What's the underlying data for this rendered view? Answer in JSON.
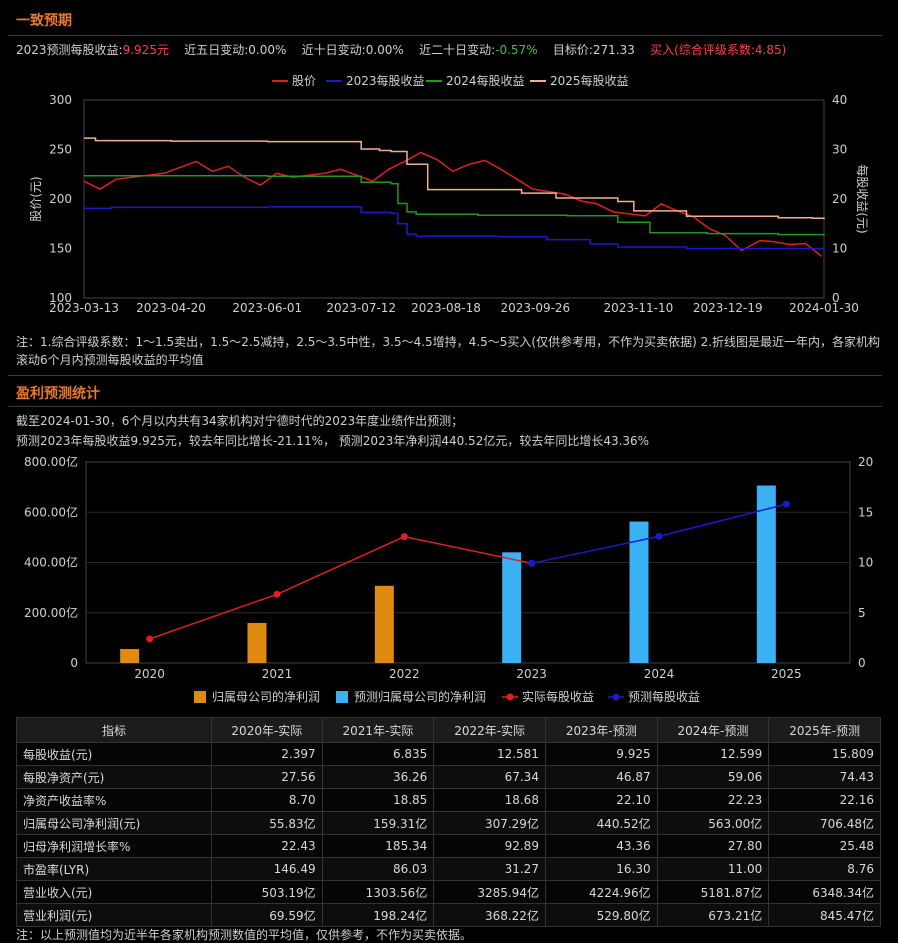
{
  "consensus": {
    "title": "一致预期",
    "eps_label": "2023预测每股收益:",
    "eps_value": "9.925元",
    "chg5": "近五日变动:0.00%",
    "chg10": "近十日变动:0.00%",
    "chg20_label": "近二十日变动:",
    "chg20_value": "-0.57%",
    "target": "目标价:271.33",
    "rating": "买入(综合评级系数:4.85)",
    "note": "注：1.综合评级系数：1～1.5卖出，1.5～2.5减持，2.5～3.5中性，3.5～4.5增持，4.5～5买入(仅供参考用，不作为买卖依据) 2.折线图是最近一年内，各家机构滚动6个月内预测每股收益的平均值"
  },
  "chart_data": [
    {
      "type": "line",
      "title": "",
      "ylabel": "股价(元)",
      "y2label": "每股收益(元)",
      "ylim": [
        100,
        300
      ],
      "y2lim": [
        0,
        40
      ],
      "yticks": [
        "300",
        "250",
        "200",
        "150",
        "100"
      ],
      "y2ticks": [
        "40",
        "30",
        "20",
        "10",
        "0"
      ],
      "xlim": [
        "2023-03-13",
        "2024-01-30"
      ],
      "xticks": [
        "2023-03-13",
        "2023-04-20",
        "2023-06-01",
        "2023-07-12",
        "2023-08-18",
        "2023-09-26",
        "2023-11-10",
        "2023-12-19",
        "2024-01-30"
      ],
      "legend": "top-center",
      "series": [
        {
          "name": "股价",
          "color": "#e02020",
          "axis": "left",
          "x": [
            "2023-03-13",
            "2023-03-20",
            "2023-03-27",
            "2023-04-03",
            "2023-04-10",
            "2023-04-17",
            "2023-04-24",
            "2023-05-01",
            "2023-05-08",
            "2023-05-15",
            "2023-05-22",
            "2023-05-29",
            "2023-06-05",
            "2023-06-12",
            "2023-06-19",
            "2023-06-26",
            "2023-07-03",
            "2023-07-10",
            "2023-07-17",
            "2023-07-24",
            "2023-07-31",
            "2023-08-07",
            "2023-08-14",
            "2023-08-21",
            "2023-08-28",
            "2023-09-04",
            "2023-09-11",
            "2023-09-18",
            "2023-09-25",
            "2023-10-09",
            "2023-10-16",
            "2023-10-23",
            "2023-10-30",
            "2023-11-06",
            "2023-11-13",
            "2023-11-20",
            "2023-11-27",
            "2023-12-04",
            "2023-12-11",
            "2023-12-18",
            "2023-12-25",
            "2024-01-02",
            "2024-01-08",
            "2024-01-15",
            "2024-01-22",
            "2024-01-29"
          ],
          "values": [
            218,
            210,
            220,
            222,
            224,
            226,
            232,
            238,
            228,
            233,
            222,
            214,
            226,
            222,
            224,
            226,
            230,
            224,
            218,
            230,
            238,
            247,
            240,
            228,
            235,
            239,
            230,
            220,
            210,
            205,
            198,
            195,
            187,
            185,
            183,
            195,
            188,
            182,
            170,
            163,
            148,
            158,
            157,
            154,
            155,
            142
          ]
        },
        {
          "name": "2023每股收益",
          "color": "#1a1acc",
          "axis": "right",
          "x": [
            "2023-03-13",
            "2023-03-25",
            "2023-04-20",
            "2023-06-01",
            "2023-07-12",
            "2023-07-25",
            "2023-07-28",
            "2023-08-01",
            "2023-08-05",
            "2023-09-10",
            "2023-10-01",
            "2023-10-20",
            "2023-11-01",
            "2023-12-01",
            "2024-01-10",
            "2024-01-30"
          ],
          "values": [
            18.1,
            18.3,
            18.3,
            18.4,
            17.3,
            17.1,
            15.0,
            12.9,
            12.5,
            12.4,
            11.8,
            10.9,
            10.3,
            10.0,
            10.0,
            9.9
          ]
        },
        {
          "name": "2024每股收益",
          "color": "#1f9a1f",
          "axis": "right",
          "x": [
            "2023-03-13",
            "2023-04-20",
            "2023-06-01",
            "2023-07-12",
            "2023-07-25",
            "2023-07-28",
            "2023-08-01",
            "2023-08-05",
            "2023-09-01",
            "2023-10-10",
            "2023-11-01",
            "2023-11-15",
            "2023-12-10",
            "2024-01-10",
            "2024-01-30"
          ],
          "values": [
            24.7,
            24.7,
            24.6,
            23.4,
            23.1,
            19.1,
            17.4,
            16.9,
            16.7,
            16.6,
            15.3,
            13.2,
            13.0,
            12.8,
            12.6
          ]
        },
        {
          "name": "2025每股收益",
          "color": "#f0b090",
          "axis": "right",
          "x": [
            "2023-03-13",
            "2023-03-18",
            "2023-04-20",
            "2023-06-01",
            "2023-07-12",
            "2023-07-20",
            "2023-07-25",
            "2023-08-01",
            "2023-08-10",
            "2023-09-20",
            "2023-10-05",
            "2023-11-01",
            "2023-11-08",
            "2023-12-01",
            "2024-01-10",
            "2024-01-25",
            "2024-01-30"
          ],
          "values": [
            32.3,
            31.8,
            31.7,
            31.6,
            30.1,
            29.8,
            29.6,
            27.0,
            21.9,
            21.2,
            20.2,
            19.5,
            17.6,
            16.5,
            16.2,
            16.1,
            15.9
          ]
        }
      ]
    },
    {
      "type": "bar",
      "title": "",
      "ylim": [
        0,
        800
      ],
      "y2lim": [
        0,
        20
      ],
      "yticks": [
        "800.00亿",
        "600.00亿",
        "400.00亿",
        "200.00亿",
        "0"
      ],
      "y2ticks": [
        "20",
        "15",
        "10",
        "5",
        "0"
      ],
      "categories": [
        "2020",
        "2021",
        "2022",
        "2023",
        "2024",
        "2025"
      ],
      "legend": "bottom-center",
      "series": [
        {
          "name": "归属母公司的净利润",
          "color": "#e08a10",
          "type": "bar",
          "values": [
            55.83,
            159.31,
            307.29,
            null,
            null,
            null
          ]
        },
        {
          "name": "预测归属母公司的净利润",
          "color": "#3ab0f5",
          "type": "bar",
          "values": [
            null,
            null,
            null,
            440.52,
            563.0,
            706.48
          ]
        },
        {
          "name": "实际每股收益",
          "color": "#e02020",
          "type": "line",
          "values": [
            2.397,
            6.835,
            12.581,
            9.925,
            null,
            null
          ]
        },
        {
          "name": "预测每股收益",
          "color": "#1a1acc",
          "type": "line",
          "values": [
            null,
            null,
            null,
            9.925,
            12.599,
            15.809
          ]
        }
      ]
    }
  ],
  "stats": {
    "title": "盈利预测统计",
    "line1": "截至2024-01-30，6个月以内共有34家机构对宁德时代的2023年度业绩作出预测；",
    "line2": "预测2023年每股收益9.925元，较去年同比增长-21.11%， 预测2023年净利润440.52亿元，较去年同比增长43.36%"
  },
  "table": {
    "headers": [
      "指标",
      "2020年-实际",
      "2021年-实际",
      "2022年-实际",
      "2023年-预测",
      "2024年-预测",
      "2025年-预测"
    ],
    "rows": [
      [
        "每股收益(元)",
        "2.397",
        "6.835",
        "12.581",
        "9.925",
        "12.599",
        "15.809"
      ],
      [
        "每股净资产(元)",
        "27.56",
        "36.26",
        "67.34",
        "46.87",
        "59.06",
        "74.43"
      ],
      [
        "净资产收益率%",
        "8.70",
        "18.85",
        "18.68",
        "22.10",
        "22.23",
        "22.16"
      ],
      [
        "归属母公司净利润(元)",
        "55.83亿",
        "159.31亿",
        "307.29亿",
        "440.52亿",
        "563.00亿",
        "706.48亿"
      ],
      [
        "归母净利润增长率%",
        "22.43",
        "185.34",
        "92.89",
        "43.36",
        "27.80",
        "25.48"
      ],
      [
        "市盈率(LYR)",
        "146.49",
        "86.03",
        "31.27",
        "16.30",
        "11.00",
        "8.76"
      ],
      [
        "营业收入(元)",
        "503.19亿",
        "1303.56亿",
        "3285.94亿",
        "4224.96亿",
        "5181.87亿",
        "6348.34亿"
      ],
      [
        "营业利润(元)",
        "69.59亿",
        "198.24亿",
        "368.22亿",
        "529.80亿",
        "673.21亿",
        "845.47亿"
      ]
    ],
    "footnote": "注：以上预测值均为近半年各家机构预测数值的平均值，仅供参考，不作为买卖依据。"
  }
}
